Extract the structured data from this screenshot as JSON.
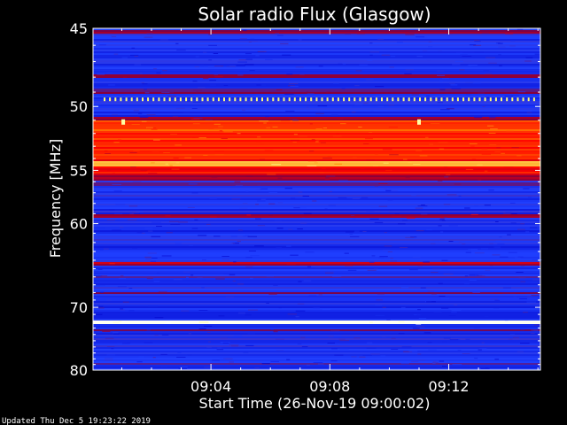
{
  "chart_data": {
    "type": "heatmap",
    "title": "Solar radio Flux (Glasgow)",
    "ylabel": "Frequency [MHz]",
    "xlabel": "Start Time (26-Nov-19 09:00:02)",
    "footer": "Updated Thu Dec  5 19:23:22 2019",
    "y_range": [
      45,
      80
    ],
    "y_scale": "reciprocal",
    "y_ticks": [
      45,
      50,
      55,
      60,
      70,
      80
    ],
    "y_tick_labels": [
      "45",
      "50",
      "55",
      "60",
      "70",
      "80"
    ],
    "x_range": [
      "09:00:02",
      "09:15:05"
    ],
    "x_ticks": [
      "09:04",
      "09:08",
      "09:12"
    ],
    "x_minor_ticks": [
      "09:01",
      "09:02",
      "09:03",
      "09:05",
      "09:06",
      "09:07",
      "09:09",
      "09:10",
      "09:11",
      "09:13",
      "09:14",
      "09:15"
    ],
    "colormap": [
      "#000000",
      "#0000c8",
      "#2040ff",
      "#800040",
      "#ff0000",
      "#ff8000",
      "#ffff80",
      "#ffffff"
    ],
    "background_intensity": 0.26,
    "bands": [
      {
        "from": 45.1,
        "to": 45.35,
        "intensity": 0.45
      },
      {
        "from": 47.8,
        "to": 48.1,
        "intensity": 0.4
      },
      {
        "from": 48.8,
        "to": 49.1,
        "intensity": 0.38
      },
      {
        "from": 50.8,
        "to": 51.0,
        "intensity": 0.45
      },
      {
        "from": 51.0,
        "to": 53.0,
        "intensity": 0.64
      },
      {
        "from": 53.0,
        "to": 54.2,
        "intensity": 0.6
      },
      {
        "from": 54.2,
        "to": 54.6,
        "intensity": 0.78
      },
      {
        "from": 54.6,
        "to": 55.4,
        "intensity": 0.56
      },
      {
        "from": 55.4,
        "to": 55.9,
        "intensity": 0.44
      },
      {
        "from": 55.9,
        "to": 56.4,
        "intensity": 0.36
      },
      {
        "from": 59.0,
        "to": 59.4,
        "intensity": 0.48
      },
      {
        "from": 64.2,
        "to": 64.6,
        "intensity": 0.5
      },
      {
        "from": 66.0,
        "to": 66.2,
        "intensity": 0.38
      },
      {
        "from": 68.0,
        "to": 68.3,
        "intensity": 0.38
      },
      {
        "from": 71.9,
        "to": 72.5,
        "intensity": 0.96
      },
      {
        "from": 73.3,
        "to": 73.6,
        "intensity": 0.36
      },
      {
        "from": 78.8,
        "to": 79.1,
        "intensity": 0.34
      }
    ],
    "dotted_line": {
      "frequency": 49.5,
      "intensity": 0.85,
      "count": 80
    },
    "spots": [
      {
        "time": "09:01:03",
        "frequency": 51.2,
        "intensity": 0.9
      },
      {
        "time": "09:11:00",
        "frequency": 51.2,
        "intensity": 0.9
      }
    ]
  }
}
